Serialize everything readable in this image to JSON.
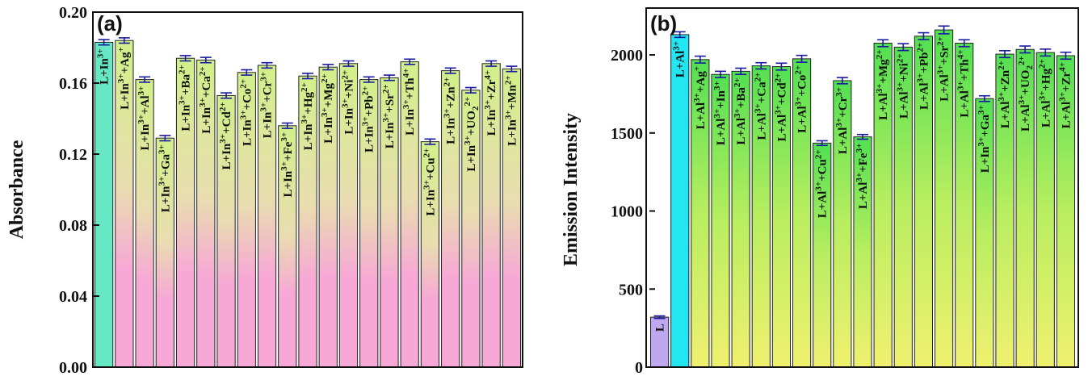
{
  "colors": {
    "first_bar_a": "#66e8c4",
    "gradient_a_top": "#d2f08a",
    "gradient_a_mid": "#e9ddb0",
    "gradient_a_bottom": "#f7a8d6",
    "first_bar_b": "#bfa8f0",
    "second_bar_b": "#22e6f2",
    "gradient_b_top": "#52e052",
    "gradient_b_mid": "#b8ee60",
    "gradient_b_bottom": "#f0f070",
    "error_bar": "#1a1aa0"
  },
  "chart_data": [
    {
      "type": "bar",
      "panel_label": "(a)",
      "title": "",
      "xlabel": "",
      "ylabel": "Absorbance",
      "ylim": [
        0,
        0.2
      ],
      "yticks": [
        "0.00",
        "0.04",
        "0.08",
        "0.12",
        "0.16",
        "0.20"
      ],
      "grid": false,
      "categories": [
        {
          "base": "L+In",
          "sup1": "3+",
          "plus": "",
          "ion": "",
          "sub": "",
          "sup2": ""
        },
        {
          "base": "L+In",
          "sup1": "3+",
          "plus": "+",
          "ion": "Ag",
          "sub": "",
          "sup2": "+"
        },
        {
          "base": "L+In",
          "sup1": "3+",
          "plus": "+",
          "ion": "Al",
          "sub": "",
          "sup2": "3+"
        },
        {
          "base": "L+In",
          "sup1": "3+",
          "plus": "+",
          "ion": "Ga",
          "sub": "",
          "sup2": "3+"
        },
        {
          "base": "L+In",
          "sup1": "3+",
          "plus": "+",
          "ion": "Ba",
          "sub": "",
          "sup2": "2+"
        },
        {
          "base": "L+In",
          "sup1": "3+",
          "plus": "+",
          "ion": "Ca",
          "sub": "",
          "sup2": "2+"
        },
        {
          "base": "L+In",
          "sup1": "3+",
          "plus": "+",
          "ion": "Cd",
          "sub": "",
          "sup2": "2+"
        },
        {
          "base": "L+In",
          "sup1": "3+",
          "plus": "+",
          "ion": "Co",
          "sub": "",
          "sup2": "2+"
        },
        {
          "base": "L+In",
          "sup1": "3+",
          "plus": "+",
          "ion": "Cr",
          "sub": "",
          "sup2": "3+"
        },
        {
          "base": "L+In",
          "sup1": "3+",
          "plus": "+",
          "ion": "Fe",
          "sub": "",
          "sup2": "3+"
        },
        {
          "base": "L+In",
          "sup1": "3+",
          "plus": "+",
          "ion": "Hg",
          "sub": "",
          "sup2": "2+"
        },
        {
          "base": "L+In",
          "sup1": "3+",
          "plus": "+",
          "ion": "Mg",
          "sub": "",
          "sup2": "2+"
        },
        {
          "base": "L+In",
          "sup1": "3+",
          "plus": "+",
          "ion": "Ni",
          "sub": "",
          "sup2": "2+"
        },
        {
          "base": "L+In",
          "sup1": "3+",
          "plus": "+",
          "ion": "Pb",
          "sub": "",
          "sup2": "2+"
        },
        {
          "base": "L+In",
          "sup1": "3+",
          "plus": "+",
          "ion": "Sr",
          "sub": "",
          "sup2": "2+"
        },
        {
          "base": "L+In",
          "sup1": "3+",
          "plus": "+",
          "ion": "Th",
          "sub": "",
          "sup2": "4+"
        },
        {
          "base": "L+In",
          "sup1": "3+",
          "plus": "+",
          "ion": "Cu",
          "sub": "",
          "sup2": "2+"
        },
        {
          "base": "L+In",
          "sup1": "3+",
          "plus": "+",
          "ion": "Zn",
          "sub": "",
          "sup2": "2+"
        },
        {
          "base": "L+In",
          "sup1": "3+",
          "plus": "+",
          "ion": "UO",
          "sub": "2",
          "sup2": "2+"
        },
        {
          "base": "L+In",
          "sup1": "3+",
          "plus": "+",
          "ion": "Zr",
          "sub": "",
          "sup2": "4+"
        },
        {
          "base": "L+In",
          "sup1": "3+",
          "plus": "+",
          "ion": "Mn",
          "sub": "",
          "sup2": "2+"
        }
      ],
      "values": [
        0.183,
        0.184,
        0.162,
        0.129,
        0.174,
        0.173,
        0.153,
        0.166,
        0.17,
        0.136,
        0.164,
        0.169,
        0.171,
        0.162,
        0.163,
        0.172,
        0.127,
        0.167,
        0.156,
        0.171,
        0.168
      ],
      "errors": [
        0.0015,
        0.0015,
        0.0015,
        0.0015,
        0.0015,
        0.0015,
        0.0015,
        0.0015,
        0.0015,
        0.0015,
        0.0015,
        0.0015,
        0.0015,
        0.0015,
        0.0015,
        0.0015,
        0.0015,
        0.0015,
        0.0015,
        0.0015,
        0.0015
      ]
    },
    {
      "type": "bar",
      "panel_label": "(b)",
      "title": "",
      "xlabel": "",
      "ylabel": "Emission Intensity",
      "ylim": [
        0,
        2300
      ],
      "yticks": [
        "0",
        "500",
        "1000",
        "1500",
        "2000"
      ],
      "grid": false,
      "categories": [
        {
          "base": "L",
          "sup1": "",
          "plus": "",
          "ion": "",
          "sub": "",
          "sup2": ""
        },
        {
          "base": "L+Al",
          "sup1": "3+",
          "plus": "",
          "ion": "",
          "sub": "",
          "sup2": ""
        },
        {
          "base": "L+Al",
          "sup1": "3+",
          "plus": "+",
          "ion": "Ag",
          "sub": "",
          "sup2": "+"
        },
        {
          "base": "L+Al",
          "sup1": "3+",
          "plus": "+",
          "ion": "In",
          "sub": "",
          "sup2": "3+"
        },
        {
          "base": "L+Al",
          "sup1": "3+",
          "plus": "+",
          "ion": "Ba",
          "sub": "",
          "sup2": "2+"
        },
        {
          "base": "L+Al",
          "sup1": "3+",
          "plus": "+",
          "ion": "Ca",
          "sub": "",
          "sup2": "2+"
        },
        {
          "base": "L+Al",
          "sup1": "3+",
          "plus": "+",
          "ion": "Cd",
          "sub": "",
          "sup2": "2+"
        },
        {
          "base": "L+Al",
          "sup1": "3+",
          "plus": "+",
          "ion": "Co",
          "sub": "",
          "sup2": "2+"
        },
        {
          "base": "L+Al",
          "sup1": "3+",
          "plus": "+",
          "ion": "Cu",
          "sub": "",
          "sup2": "2+"
        },
        {
          "base": "L+Al",
          "sup1": "3+",
          "plus": "+",
          "ion": "Cr",
          "sub": "",
          "sup2": "3+"
        },
        {
          "base": "L+Al",
          "sup1": "3+",
          "plus": "+",
          "ion": "Fe",
          "sub": "",
          "sup2": "3+"
        },
        {
          "base": "L+Al",
          "sup1": "3+",
          "plus": "+",
          "ion": "Mg",
          "sub": "",
          "sup2": "2+"
        },
        {
          "base": "L+Al",
          "sup1": "3+",
          "plus": "+",
          "ion": "Ni",
          "sub": "",
          "sup2": "2+"
        },
        {
          "base": "L+Al",
          "sup1": "3+",
          "plus": "+",
          "ion": "Pb",
          "sub": "",
          "sup2": "2+"
        },
        {
          "base": "L+Al",
          "sup1": "3+",
          "plus": "+",
          "ion": "Sr",
          "sub": "",
          "sup2": "2+"
        },
        {
          "base": "L+Al",
          "sup1": "3+",
          "plus": "+",
          "ion": "Th",
          "sub": "",
          "sup2": "4+"
        },
        {
          "base": "L+In",
          "sup1": "3+",
          "plus": "+",
          "ion": "Ga",
          "sub": "",
          "sup2": "3+"
        },
        {
          "base": "L+Al",
          "sup1": "3+",
          "plus": "+",
          "ion": "Zn",
          "sub": "",
          "sup2": "2+"
        },
        {
          "base": "L+Al",
          "sup1": "3+",
          "plus": "+",
          "ion": "UO",
          "sub": "2",
          "sup2": "2+"
        },
        {
          "base": "L+Al",
          "sup1": "3+",
          "plus": "+",
          "ion": "Hg",
          "sub": "",
          "sup2": "2+"
        },
        {
          "base": "L+Al",
          "sup1": "3+",
          "plus": "+",
          "ion": "Zr",
          "sub": "",
          "sup2": "4+"
        }
      ],
      "values": [
        320,
        2130,
        1970,
        1875,
        1895,
        1930,
        1925,
        1975,
        1435,
        1835,
        1475,
        2075,
        2050,
        2120,
        2160,
        2075,
        1720,
        2005,
        2035,
        2015,
        1995
      ],
      "errors": [
        8,
        18,
        22,
        20,
        20,
        20,
        22,
        22,
        15,
        20,
        15,
        22,
        22,
        22,
        25,
        22,
        18,
        22,
        22,
        22,
        22
      ]
    }
  ]
}
